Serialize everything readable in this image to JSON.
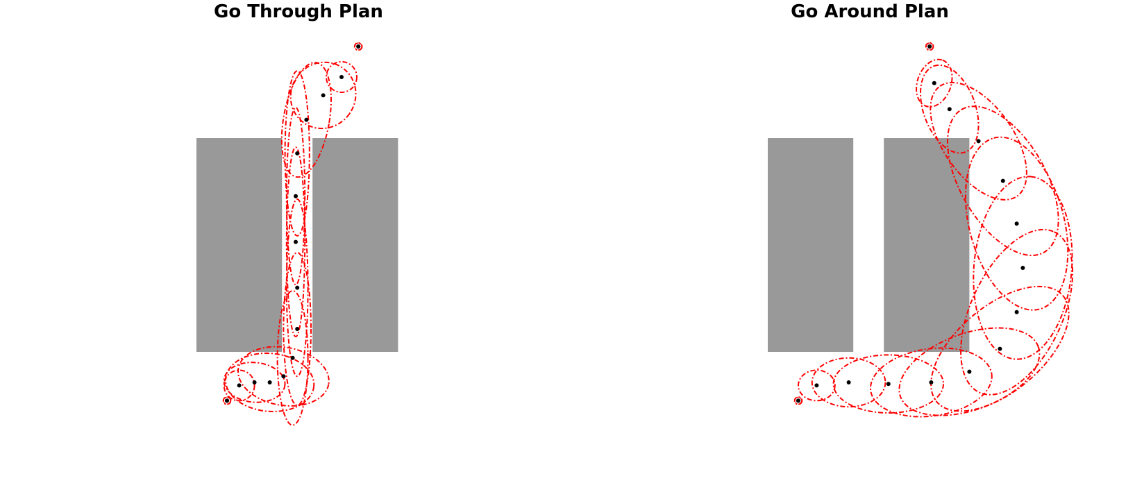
{
  "panels": [
    {
      "title": "Go Through Plan",
      "obstacles": [
        {
          "x0": 0.0,
          "x1": 2.8,
          "y0": 0.0,
          "y1": 7.0
        },
        {
          "x0": 3.8,
          "x1": 6.6,
          "y0": 0.0,
          "y1": 7.0
        }
      ],
      "start": {
        "x": 1.0,
        "y": -1.6
      },
      "goal": {
        "x": 5.3,
        "y": 10.0
      },
      "waypoints": [
        {
          "x": 1.0,
          "y": -1.6,
          "rx": 0.12,
          "ry": 0.12,
          "angle": 0
        },
        {
          "x": 1.4,
          "y": -1.1,
          "rx": 0.5,
          "ry": 0.5,
          "angle": 0
        },
        {
          "x": 1.9,
          "y": -1.0,
          "rx": 1.0,
          "ry": 0.65,
          "angle": 5
        },
        {
          "x": 2.4,
          "y": -1.0,
          "rx": 1.45,
          "ry": 0.95,
          "angle": 5
        },
        {
          "x": 2.85,
          "y": -0.8,
          "rx": 1.5,
          "ry": 0.95,
          "angle": 10
        },
        {
          "x": 3.15,
          "y": -0.2,
          "rx": 0.5,
          "ry": 2.2,
          "angle": 0
        },
        {
          "x": 3.3,
          "y": 0.75,
          "rx": 0.45,
          "ry": 2.5,
          "angle": 0
        },
        {
          "x": 3.3,
          "y": 2.1,
          "rx": 0.35,
          "ry": 2.9,
          "angle": 0
        },
        {
          "x": 3.25,
          "y": 3.6,
          "rx": 0.3,
          "ry": 3.1,
          "angle": 0
        },
        {
          "x": 3.25,
          "y": 5.1,
          "rx": 0.3,
          "ry": 2.9,
          "angle": 0
        },
        {
          "x": 3.3,
          "y": 6.5,
          "rx": 0.4,
          "ry": 2.7,
          "angle": 0
        },
        {
          "x": 3.6,
          "y": 7.6,
          "rx": 0.75,
          "ry": 1.9,
          "angle": 10
        },
        {
          "x": 4.15,
          "y": 8.4,
          "rx": 1.05,
          "ry": 1.1,
          "angle": 35
        },
        {
          "x": 4.75,
          "y": 9.0,
          "rx": 0.5,
          "ry": 0.5,
          "angle": 0
        },
        {
          "x": 5.3,
          "y": 10.0,
          "rx": 0.12,
          "ry": 0.12,
          "angle": 0
        }
      ]
    },
    {
      "title": "Go Around Plan",
      "obstacles": [
        {
          "x0": 0.0,
          "x1": 2.8,
          "y0": 0.0,
          "y1": 7.0
        },
        {
          "x0": 3.8,
          "x1": 6.6,
          "y0": 0.0,
          "y1": 7.0
        }
      ],
      "start": {
        "x": 1.0,
        "y": -1.6
      },
      "goal": {
        "x": 5.3,
        "y": 10.0
      },
      "waypoints": [
        {
          "x": 1.0,
          "y": -1.6,
          "rx": 0.12,
          "ry": 0.12,
          "angle": 0
        },
        {
          "x": 1.6,
          "y": -1.1,
          "rx": 0.6,
          "ry": 0.5,
          "angle": 0
        },
        {
          "x": 2.65,
          "y": -1.0,
          "rx": 1.2,
          "ry": 0.8,
          "angle": 0
        },
        {
          "x": 3.95,
          "y": -1.05,
          "rx": 1.8,
          "ry": 0.95,
          "angle": 0
        },
        {
          "x": 5.35,
          "y": -1.0,
          "rx": 2.0,
          "ry": 1.1,
          "angle": -8
        },
        {
          "x": 6.6,
          "y": -0.65,
          "rx": 2.4,
          "ry": 1.25,
          "angle": -20
        },
        {
          "x": 7.6,
          "y": 0.1,
          "rx": 2.7,
          "ry": 1.4,
          "angle": -40
        },
        {
          "x": 8.15,
          "y": 1.3,
          "rx": 2.9,
          "ry": 1.5,
          "angle": -65
        },
        {
          "x": 8.35,
          "y": 2.75,
          "rx": 3.0,
          "ry": 1.6,
          "angle": -85
        },
        {
          "x": 8.15,
          "y": 4.2,
          "rx": 2.9,
          "ry": 1.55,
          "angle": -105
        },
        {
          "x": 7.7,
          "y": 5.6,
          "rx": 2.7,
          "ry": 1.4,
          "angle": -120
        },
        {
          "x": 6.9,
          "y": 6.9,
          "rx": 2.2,
          "ry": 1.15,
          "angle": -125
        },
        {
          "x": 5.95,
          "y": 7.95,
          "rx": 1.5,
          "ry": 0.85,
          "angle": -110
        },
        {
          "x": 5.45,
          "y": 8.8,
          "rx": 0.8,
          "ry": 0.55,
          "angle": -70
        },
        {
          "x": 5.3,
          "y": 10.0,
          "rx": 0.12,
          "ry": 0.12,
          "angle": 0
        }
      ]
    }
  ],
  "colors": {
    "obstacle": "#999999",
    "ellipse": "#ff0000",
    "point": "#000000"
  }
}
